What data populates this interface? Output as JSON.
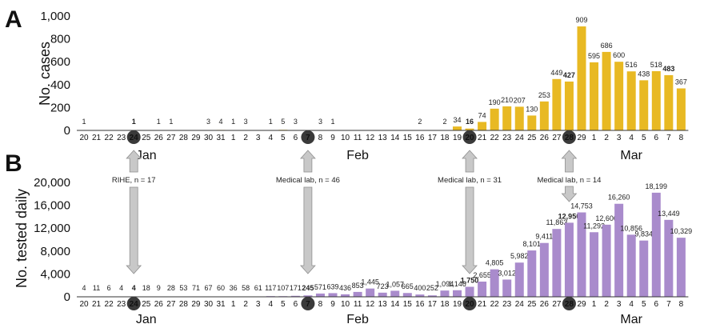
{
  "panels": {
    "a_letter": "A",
    "b_letter": "B"
  },
  "chart_data": [
    {
      "type": "bar",
      "panel": "A",
      "ylabel": "No. cases",
      "ylim": [
        0,
        1000
      ],
      "yticks": [
        "0",
        "200",
        "400",
        "600",
        "800",
        "1,000"
      ],
      "color": "#e8b923",
      "highlight_label_color": "#c98a00",
      "x": [
        "20",
        "21",
        "22",
        "23",
        "24",
        "25",
        "26",
        "27",
        "28",
        "29",
        "30",
        "31",
        "1",
        "2",
        "3",
        "4",
        "5",
        "6",
        "7",
        "8",
        "9",
        "10",
        "11",
        "12",
        "13",
        "14",
        "15",
        "16",
        "17",
        "18",
        "19",
        "20",
        "21",
        "22",
        "23",
        "24",
        "25",
        "26",
        "27",
        "28",
        "29",
        "1",
        "2",
        "3",
        "4",
        "5",
        "6",
        "7",
        "8"
      ],
      "values": [
        1,
        null,
        null,
        null,
        1,
        null,
        1,
        1,
        null,
        null,
        3,
        4,
        1,
        3,
        null,
        1,
        5,
        3,
        null,
        3,
        1,
        null,
        null,
        null,
        null,
        null,
        null,
        2,
        null,
        2,
        34,
        16,
        74,
        190,
        210,
        207,
        130,
        253,
        449,
        427,
        909,
        595,
        686,
        600,
        516,
        438,
        518,
        483,
        367
      ],
      "labels": [
        "1",
        "",
        "",
        "",
        "1",
        "",
        "1",
        "1",
        "",
        "",
        "3",
        "4",
        "1",
        "3",
        "",
        "1",
        "5",
        "3",
        "",
        "3",
        "1",
        "",
        "",
        "",
        "",
        "",
        "",
        "2",
        "",
        "2",
        "34",
        "16",
        "74",
        "190",
        "210",
        "207",
        "130",
        "253",
        "449",
        "427",
        "909",
        "595",
        "686",
        "600",
        "516",
        "438",
        "518",
        "483",
        "367"
      ],
      "highlighted": [
        4,
        31,
        39,
        47
      ],
      "circled_dates": [
        4,
        18,
        31,
        39
      ],
      "months": [
        {
          "label": "Jan",
          "at": 5
        },
        {
          "label": "Feb",
          "at": 22
        },
        {
          "label": "Mar",
          "at": 44
        }
      ]
    },
    {
      "type": "bar",
      "panel": "B",
      "ylabel": "No. tested daily",
      "ylim": [
        0,
        20000
      ],
      "yticks": [
        "0",
        "4,000",
        "8,000",
        "12,000",
        "16,000",
        "20,000"
      ],
      "color": "#a98bcc",
      "highlight_label_color": "#6a2fa8",
      "x": [
        "20",
        "21",
        "22",
        "23",
        "24",
        "25",
        "26",
        "27",
        "28",
        "29",
        "30",
        "31",
        "1",
        "2",
        "3",
        "4",
        "5",
        "6",
        "7",
        "8",
        "9",
        "10",
        "11",
        "12",
        "13",
        "14",
        "15",
        "16",
        "17",
        "18",
        "19",
        "20",
        "21",
        "22",
        "23",
        "24",
        "25",
        "26",
        "27",
        "28",
        "29",
        "1",
        "2",
        "3",
        "4",
        "5",
        "6",
        "7",
        "8"
      ],
      "values": [
        4,
        11,
        6,
        4,
        4,
        18,
        9,
        28,
        53,
        71,
        67,
        60,
        36,
        58,
        61,
        117,
        107,
        171,
        245,
        571,
        639,
        436,
        853,
        1445,
        723,
        1057,
        665,
        400,
        252,
        1094,
        1146,
        1750,
        2655,
        4805,
        3012,
        5982,
        8101,
        9411,
        11863,
        12950,
        14753,
        11292,
        12606,
        16260,
        10856,
        9834,
        18199,
        13449,
        10329
      ],
      "labels": [
        "4",
        "11",
        "6",
        "4",
        "4",
        "18",
        "9",
        "28",
        "53",
        "71",
        "67",
        "60",
        "36",
        "58",
        "61",
        "117",
        "107",
        "171",
        "245",
        "571",
        "639",
        "436",
        "853",
        "1,445",
        "723",
        "1,057",
        "665",
        "400",
        "252",
        "1,094",
        "1,146",
        "1,750",
        "2,655",
        "4,805",
        "3,012",
        "5,982",
        "8,101",
        "9,411",
        "11,863",
        "12,950",
        "14,753",
        "11,292",
        "12,606",
        "16,260",
        "10,856",
        "9,834",
        "18,199",
        "13,449",
        "10,329"
      ],
      "highlighted": [
        4,
        18,
        31,
        39
      ],
      "circled_dates": [
        4,
        18,
        31,
        39
      ],
      "months": [
        {
          "label": "Jan",
          "at": 5
        },
        {
          "label": "Feb",
          "at": 22
        },
        {
          "label": "Mar",
          "at": 44
        }
      ]
    }
  ],
  "annotations": [
    {
      "label": "RIHE, n = 17",
      "at": 4
    },
    {
      "label": "Medical lab, n = 46",
      "at": 18
    },
    {
      "label": "Medical lab, n = 31",
      "at": 31
    },
    {
      "label": "Medical lab, n = 14",
      "at": 39
    }
  ]
}
